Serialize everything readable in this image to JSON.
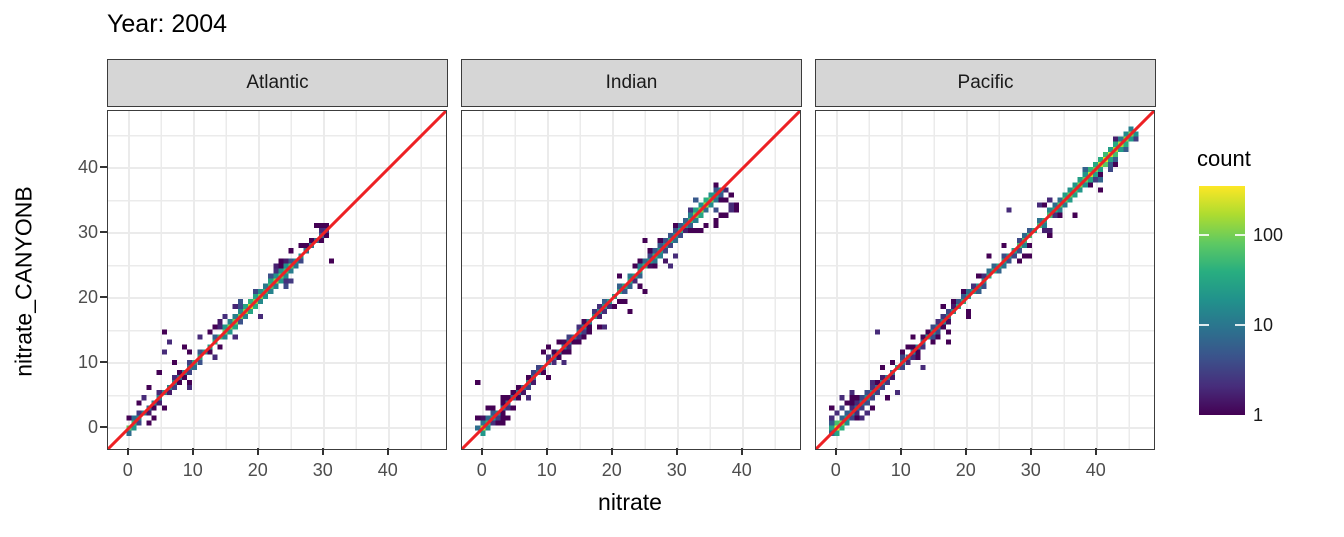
{
  "title": "Year: 2004",
  "axes": {
    "x_label": "nitrate",
    "y_label": "nitrate_CANYONB",
    "x_ticks": [
      0,
      10,
      20,
      30,
      40
    ],
    "y_ticks": [
      0,
      10,
      20,
      30,
      40
    ],
    "minor_ticks": [
      5,
      15,
      25,
      35,
      45
    ],
    "axis_range": [
      -3.2,
      48.8
    ]
  },
  "legend": {
    "title": "count",
    "ticks": [
      1,
      10,
      100
    ],
    "scale": "log10",
    "max_count": 350
  },
  "colors": {
    "reference_line": "#ed2124",
    "grid": "#ebebeb",
    "panel_border": "#3c3c3c",
    "strip_fill": "#d6d6d6",
    "tick_text": "#4d4d4d",
    "viridis": [
      "#440154",
      "#472d7b",
      "#3b528b",
      "#2c728e",
      "#21918c",
      "#28ae80",
      "#5ec962",
      "#addc30",
      "#fde725"
    ]
  },
  "chart_data": [
    {
      "type": "heatmap",
      "facet": "Atlantic",
      "xlabel": "nitrate",
      "ylabel": "nitrate_CANYONB",
      "xlim": [
        -3.2,
        48.8
      ],
      "ylim": [
        -3.2,
        48.8
      ],
      "bin_size": 0.78,
      "reference_line": "y = x",
      "diagonal_range": [
        0,
        30.5
      ],
      "count_profile": [
        [
          0,
          130
        ],
        [
          0.8,
          60
        ],
        [
          1.6,
          15
        ],
        [
          3,
          8
        ],
        [
          5,
          10
        ],
        [
          7,
          12
        ],
        [
          9,
          18
        ],
        [
          11,
          22
        ],
        [
          13,
          35
        ],
        [
          15,
          70
        ],
        [
          16,
          110
        ],
        [
          17,
          150
        ],
        [
          18,
          110
        ],
        [
          19,
          160
        ],
        [
          20,
          90
        ],
        [
          21,
          70
        ],
        [
          22,
          90
        ],
        [
          23,
          110
        ],
        [
          24,
          70
        ],
        [
          25,
          45
        ],
        [
          26,
          18
        ],
        [
          27,
          12
        ],
        [
          28,
          8
        ],
        [
          29,
          5
        ],
        [
          30.5,
          3
        ]
      ],
      "wide_zones": [
        [
          18,
          25
        ]
      ],
      "outlier_cells": [
        [
          5.4,
          14.7
        ],
        [
          5.4,
          11.7
        ],
        [
          4.7,
          8.6
        ],
        [
          7.0,
          9.9
        ],
        [
          8.6,
          12.6
        ],
        [
          6.2,
          13.2
        ],
        [
          31.1,
          26.0
        ],
        [
          9.3,
          6.2
        ],
        [
          3.1,
          6.3
        ],
        [
          2.3,
          4.7
        ],
        [
          10.9,
          13.8
        ],
        [
          12.4,
          14.9
        ],
        [
          16.3,
          13.9
        ],
        [
          20.2,
          17.5
        ],
        [
          13.2,
          10.6
        ]
      ],
      "seed": 7
    },
    {
      "type": "heatmap",
      "facet": "Indian",
      "xlabel": "nitrate",
      "ylabel": "nitrate_CANYONB",
      "xlim": [
        -3.2,
        48.8
      ],
      "ylim": [
        -3.2,
        48.8
      ],
      "bin_size": 0.78,
      "reference_line": "y = x",
      "diagonal_range": [
        0,
        37
      ],
      "count_profile": [
        [
          0,
          170
        ],
        [
          0.8,
          50
        ],
        [
          1.6,
          12
        ],
        [
          4,
          8
        ],
        [
          7,
          10
        ],
        [
          10,
          12
        ],
        [
          13,
          14
        ],
        [
          16,
          14
        ],
        [
          19,
          20
        ],
        [
          21,
          35
        ],
        [
          23,
          45
        ],
        [
          25,
          40
        ],
        [
          26,
          30
        ],
        [
          28,
          25
        ],
        [
          30,
          22
        ],
        [
          31,
          28
        ],
        [
          32,
          45
        ],
        [
          33,
          70
        ],
        [
          34,
          160
        ],
        [
          34.8,
          80
        ],
        [
          35.6,
          30
        ],
        [
          36.5,
          12
        ],
        [
          37,
          6
        ]
      ],
      "wide_zones": [
        [
          25,
          37
        ]
      ],
      "outlier_cells": [
        [
          -0.7,
          7.4
        ],
        [
          39.2,
          34.7
        ],
        [
          24.9,
          29.1
        ],
        [
          24.8,
          21.4
        ],
        [
          22.3,
          17.7
        ],
        [
          35.5,
          32.2
        ],
        [
          36.8,
          33.0
        ],
        [
          38.0,
          33.7
        ],
        [
          38.6,
          34.5
        ],
        [
          36.0,
          31.4
        ],
        [
          37.3,
          32.4
        ],
        [
          38.9,
          33.2
        ],
        [
          34.4,
          31.2
        ],
        [
          33.6,
          30.4
        ],
        [
          30.0,
          26.6
        ],
        [
          28.8,
          25.0
        ],
        [
          18.6,
          15.4
        ],
        [
          12.5,
          9.8
        ],
        [
          6.9,
          4.9
        ],
        [
          9.5,
          11.6
        ]
      ],
      "seed": 13
    },
    {
      "type": "heatmap",
      "facet": "Pacific",
      "xlabel": "nitrate",
      "ylabel": "nitrate_CANYONB",
      "xlim": [
        -3.2,
        48.8
      ],
      "ylim": [
        -3.2,
        48.8
      ],
      "bin_size": 0.78,
      "reference_line": "y = x",
      "diagonal_range": [
        0,
        45.5
      ],
      "count_profile": [
        [
          0,
          320
        ],
        [
          0.8,
          80
        ],
        [
          1.6,
          20
        ],
        [
          3,
          12
        ],
        [
          5,
          12
        ],
        [
          8,
          16
        ],
        [
          11,
          14
        ],
        [
          14,
          16
        ],
        [
          17,
          20
        ],
        [
          20,
          24
        ],
        [
          23,
          28
        ],
        [
          26,
          32
        ],
        [
          29,
          38
        ],
        [
          32,
          48
        ],
        [
          34,
          60
        ],
        [
          36,
          80
        ],
        [
          38,
          110
        ],
        [
          40,
          150
        ],
        [
          41,
          130
        ],
        [
          42,
          170
        ],
        [
          43,
          140
        ],
        [
          44,
          170
        ],
        [
          45.5,
          110
        ]
      ],
      "wide_zones": [
        [
          0,
          6
        ],
        [
          33,
          45.5
        ]
      ],
      "outlier_cells": [
        [
          6.5,
          14.9
        ],
        [
          26.5,
          33.2
        ],
        [
          0.0,
          2.5
        ],
        [
          0.8,
          3.2
        ],
        [
          -0.4,
          2.8
        ],
        [
          1.5,
          4.1
        ],
        [
          0.5,
          4.7
        ],
        [
          2.3,
          5.4
        ],
        [
          4.4,
          2.6
        ],
        [
          3.8,
          1.8
        ],
        [
          13.1,
          9.3
        ],
        [
          9.1,
          5.8
        ],
        [
          11.7,
          14.2
        ],
        [
          16.8,
          13.4
        ],
        [
          20.1,
          16.9
        ],
        [
          23.4,
          26.8
        ],
        [
          29.9,
          26.5
        ],
        [
          33.0,
          29.8
        ],
        [
          36.4,
          33.1
        ],
        [
          40.3,
          37.0
        ],
        [
          5.4,
          6.9
        ],
        [
          7.7,
          4.7
        ],
        [
          43.1,
          40.2
        ],
        [
          31.5,
          34.0
        ]
      ],
      "seed": 21
    }
  ],
  "layout_note": "faceted 2D-bin scatter comparison, log10 viridis count fill, red y=x reference line"
}
